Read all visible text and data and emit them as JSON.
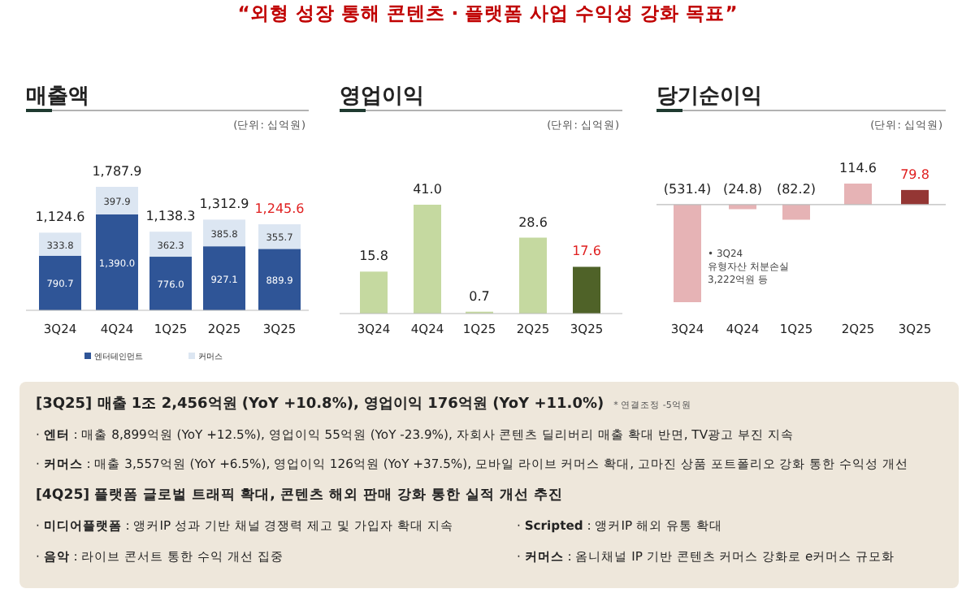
{
  "chart_data": [
    {
      "type": "other",
      "title": "“외형 성장 통해 콘텐츠 · 플랫폼 사업 수익성 강화 목표”"
    },
    {
      "type": "bar",
      "title": "매출액",
      "subtitle": "(단위: 십억원)",
      "categories": [
        "3Q24",
        "4Q24",
        "1Q25",
        "2Q25",
        "3Q25"
      ],
      "stacked": true,
      "legend": "bottom",
      "series": [
        {
          "name": "엔터테인먼트",
          "color": "#2f5597",
          "values": [
            790.7,
            1390.0,
            776.0,
            927.1,
            889.9
          ],
          "value_labels": [
            "790.7",
            "1,390.0",
            "776.0",
            "927.1",
            "889.9"
          ]
        },
        {
          "name": "커머스",
          "color": "#dce6f2",
          "values": [
            333.8,
            397.9,
            362.3,
            385.8,
            355.7
          ],
          "value_labels": [
            "333.8",
            "397.9",
            "362.3",
            "385.8",
            "355.7"
          ]
        }
      ],
      "totals": [
        "1,124.6",
        "1,787.9",
        "1,138.3",
        "1,312.9",
        "1,245.6"
      ]
    },
    {
      "type": "bar",
      "title": "영업이익",
      "subtitle": "(단위: 십억원)",
      "categories": [
        "3Q24",
        "4Q24",
        "1Q25",
        "2Q25",
        "3Q25"
      ],
      "values": [
        15.8,
        41.0,
        0.7,
        28.6,
        17.6
      ],
      "colors": [
        "#c5d9a0",
        "#c5d9a0",
        "#c5d9a0",
        "#c5d9a0",
        "#4f6228"
      ],
      "value_labels": [
        "15.8",
        "41.0",
        "0.7",
        "28.6",
        "17.6"
      ]
    },
    {
      "type": "bar",
      "title": "당기순이익",
      "subtitle": "(단위: 십억원)",
      "categories": [
        "3Q24",
        "4Q24",
        "1Q25",
        "2Q25",
        "3Q25"
      ],
      "values": [
        -531.4,
        -24.8,
        -82.2,
        114.6,
        79.8
      ],
      "colors": [
        "#e6b3b5",
        "#e6b3b5",
        "#e6b3b5",
        "#e6b3b5",
        "#943634"
      ],
      "value_labels": [
        "(531.4)",
        "(24.8)",
        "(82.2)",
        "114.6",
        "79.8"
      ],
      "annotations": [
        "• 3Q24 유형자산 처분손실 3,222억원 등"
      ]
    },
    {
      "type": "other",
      "annotations": [
        "**[3Q25] 매출 1조 2,456억원** (YoY +10.8%)**, 영업이익 176억원** (YoY +11.0%)",
        "* 연결조정 -5억원",
        "· **엔터** : 매출 8,899억원 (YoY +12.5%), 영업이익 55억원 (YoY -23.9%), 자회사 콘텐츠 딜리버리 매출 확대 반면, TV광고 부진 지속",
        "· **커머스** : 매출 3,557억원 (YoY +6.5%), 영업이익 126억원 (YoY +37.5%), 모바일 라이브 커머스 확대, 고마진 상품 포트폴리오 강화 통한 수익성 개선",
        "[4Q25] 플랫폼 글로벌 트래픽 확대, 콘텐츠 해외 판매 강화 통한 실적 개선 추진",
        "· **미디어플랫폼** : 앵커IP 성과 기반 채널 경쟁력 제고 및 가입자 확대 지속",
        "· **Scripted** : 앵커IP 해외 유통 확대",
        "· **음악** : 라이브 콘서트 통한 수익 개선 집중",
        "· **커머스** : 옴니채널 IP 기반 콘텐츠 커머스 강화로 e커머스 규모화"
      ]
    }
  ]
}
